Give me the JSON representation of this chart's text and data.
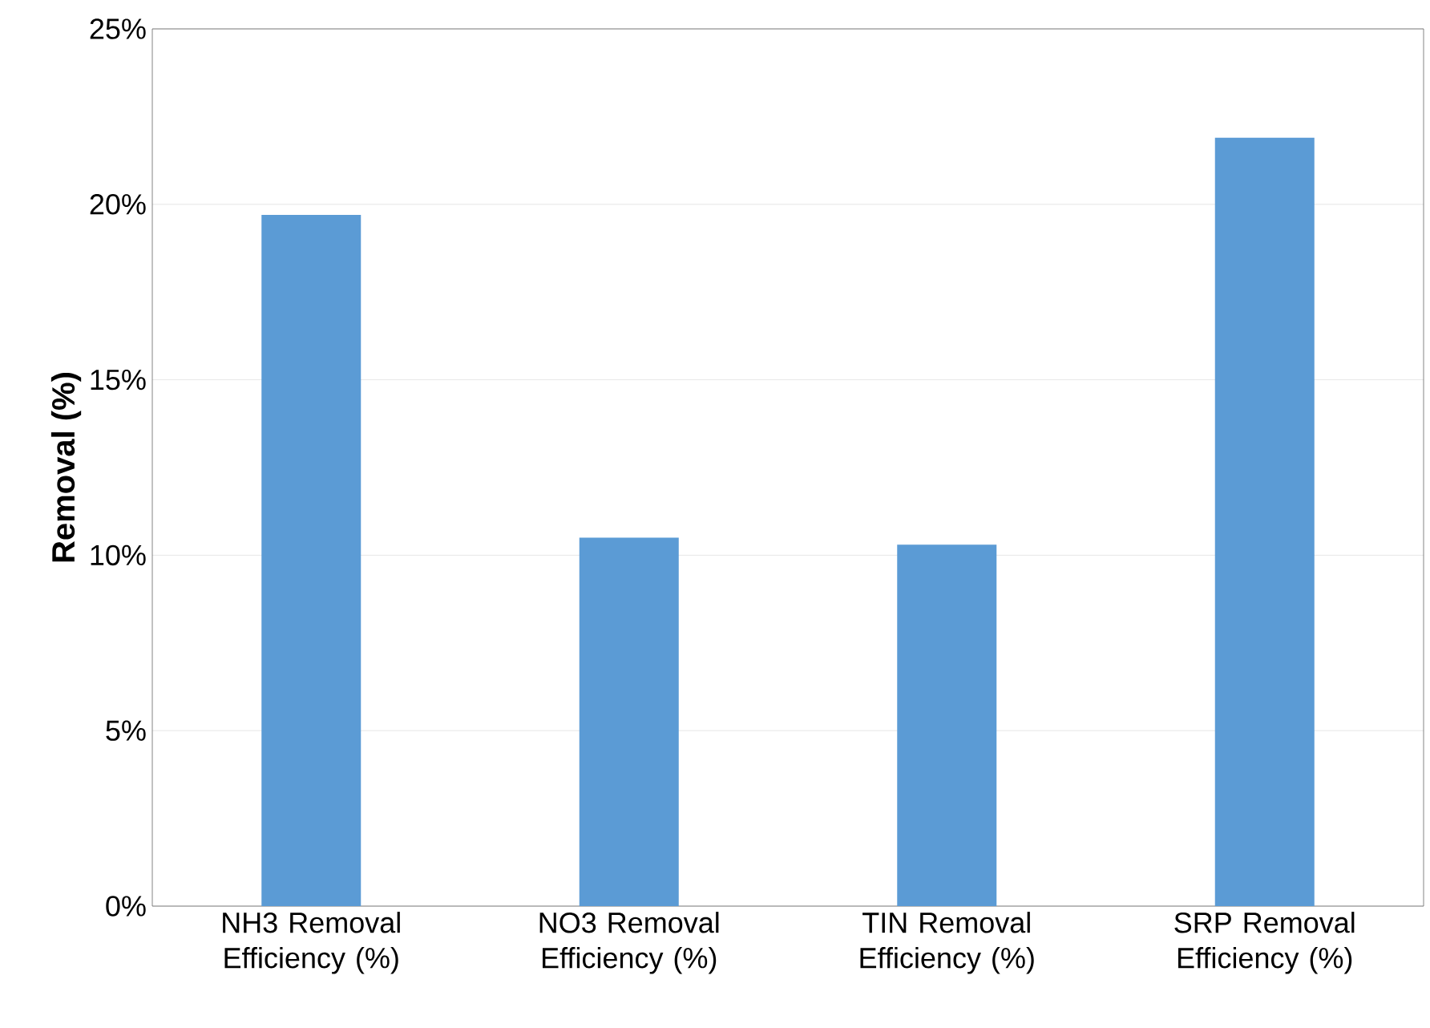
{
  "chart_data": {
    "type": "bar",
    "ylabel": "Removal (%)",
    "categories": [
      "NH3 Removal Efficiency (%)",
      "NO3 Removal Efficiency (%)",
      "TIN Removal Efficiency (%)",
      "SRP Removal Efficiency (%)"
    ],
    "values": [
      19.7,
      10.5,
      10.3,
      21.9
    ],
    "color": "#5b9bd5",
    "ylim": [
      0,
      25
    ],
    "yticks": [
      {
        "value": 0,
        "label": "0%"
      },
      {
        "value": 5,
        "label": "5%"
      },
      {
        "value": 10,
        "label": "10%"
      },
      {
        "value": 15,
        "label": "15%"
      },
      {
        "value": 20,
        "label": "20%"
      },
      {
        "value": 25,
        "label": "25%"
      }
    ],
    "grid": "y"
  }
}
